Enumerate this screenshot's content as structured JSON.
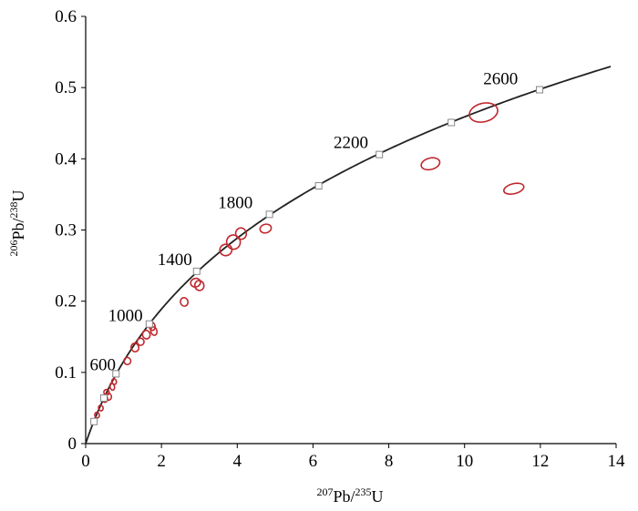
{
  "chart_data": {
    "type": "scatter",
    "subtype": "concordia-diagram",
    "title": "",
    "xlabel": {
      "sup1": "207",
      "base1": "Pb/",
      "sup2": "235",
      "base2": "U"
    },
    "ylabel": {
      "sup1": "206",
      "base1": "Pb/",
      "sup2": "238",
      "base2": "U"
    },
    "xlim": [
      0,
      14
    ],
    "ylim": [
      0,
      0.6
    ],
    "xticks": [
      0,
      2,
      4,
      6,
      8,
      10,
      12,
      14
    ],
    "yticks": [
      0,
      0.1,
      0.2,
      0.3,
      0.4,
      0.5,
      0.6
    ],
    "xtick_labels": [
      "0",
      "2",
      "4",
      "6",
      "8",
      "10",
      "12",
      "14"
    ],
    "ytick_labels": [
      "0",
      "0.1",
      "0.2",
      "0.3",
      "0.4",
      "0.5",
      "0.6"
    ],
    "grid": false,
    "legend": "none",
    "colors": {
      "curve": "#222222",
      "ellipse": "#c0282e",
      "marker_fill": "#ffffff",
      "marker_stroke": "#888888"
    },
    "concordia_markers": [
      {
        "age_ma": 200,
        "x": 0.22,
        "y": 0.031
      },
      {
        "age_ma": 400,
        "x": 0.48,
        "y": 0.064
      },
      {
        "age_ma": 600,
        "x": 0.8,
        "y": 0.098
      },
      {
        "age_ma": 1000,
        "x": 1.68,
        "y": 0.168
      },
      {
        "age_ma": 1400,
        "x": 2.93,
        "y": 0.242
      },
      {
        "age_ma": 1800,
        "x": 4.85,
        "y": 0.322
      },
      {
        "age_ma": 2000,
        "x": 6.15,
        "y": 0.362
      },
      {
        "age_ma": 2200,
        "x": 7.75,
        "y": 0.406
      },
      {
        "age_ma": 2400,
        "x": 9.65,
        "y": 0.451
      },
      {
        "age_ma": 2600,
        "x": 11.98,
        "y": 0.497
      }
    ],
    "age_labels": [
      {
        "text": "600",
        "x": 0.45,
        "y": 0.103
      },
      {
        "text": "1000",
        "x": 1.05,
        "y": 0.172
      },
      {
        "text": "1400",
        "x": 2.35,
        "y": 0.251
      },
      {
        "text": "1800",
        "x": 3.95,
        "y": 0.331
      },
      {
        "text": "2200",
        "x": 7.0,
        "y": 0.415
      },
      {
        "text": "2600",
        "x": 10.95,
        "y": 0.505
      }
    ],
    "ellipses": [
      {
        "x": 0.3,
        "y": 0.04,
        "rx": 0.05,
        "ry": 0.004
      },
      {
        "x": 0.4,
        "y": 0.05,
        "rx": 0.06,
        "ry": 0.004
      },
      {
        "x": 0.5,
        "y": 0.063,
        "rx": 0.08,
        "ry": 0.005
      },
      {
        "x": 0.55,
        "y": 0.072,
        "rx": 0.07,
        "ry": 0.004
      },
      {
        "x": 0.6,
        "y": 0.066,
        "rx": 0.08,
        "ry": 0.005
      },
      {
        "x": 0.7,
        "y": 0.08,
        "rx": 0.06,
        "ry": 0.005
      },
      {
        "x": 0.75,
        "y": 0.087,
        "rx": 0.06,
        "ry": 0.004
      },
      {
        "x": 1.1,
        "y": 0.116,
        "rx": 0.09,
        "ry": 0.005
      },
      {
        "x": 1.3,
        "y": 0.135,
        "rx": 0.1,
        "ry": 0.006
      },
      {
        "x": 1.45,
        "y": 0.143,
        "rx": 0.09,
        "ry": 0.005
      },
      {
        "x": 1.6,
        "y": 0.153,
        "rx": 0.1,
        "ry": 0.006
      },
      {
        "x": 1.75,
        "y": 0.165,
        "rx": 0.08,
        "ry": 0.006
      },
      {
        "x": 1.8,
        "y": 0.158,
        "rx": 0.08,
        "ry": 0.006
      },
      {
        "x": 2.6,
        "y": 0.199,
        "rx": 0.1,
        "ry": 0.006
      },
      {
        "x": 2.9,
        "y": 0.226,
        "rx": 0.13,
        "ry": 0.006
      },
      {
        "x": 3.0,
        "y": 0.222,
        "rx": 0.12,
        "ry": 0.007
      },
      {
        "x": 3.7,
        "y": 0.272,
        "rx": 0.16,
        "ry": 0.008
      },
      {
        "x": 3.9,
        "y": 0.283,
        "rx": 0.18,
        "ry": 0.01
      },
      {
        "x": 4.1,
        "y": 0.295,
        "rx": 0.14,
        "ry": 0.008
      },
      {
        "x": 4.75,
        "y": 0.302,
        "rx": 0.15,
        "ry": 0.006
      },
      {
        "x": 9.1,
        "y": 0.393,
        "rx": 0.25,
        "ry": 0.008
      },
      {
        "x": 10.5,
        "y": 0.465,
        "rx": 0.38,
        "ry": 0.013
      },
      {
        "x": 11.3,
        "y": 0.358,
        "rx": 0.27,
        "ry": 0.007
      }
    ]
  }
}
